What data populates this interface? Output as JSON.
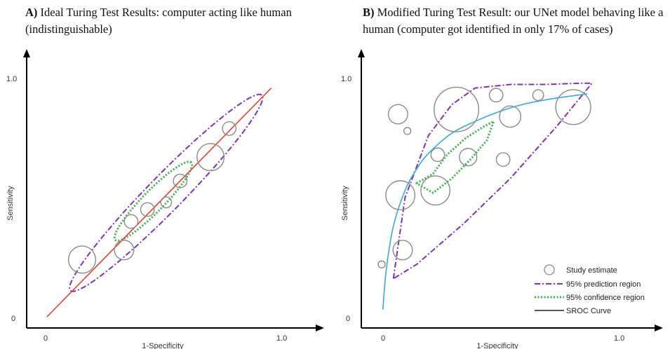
{
  "panels": [
    {
      "label": "A)",
      "title": "Ideal Turing Test Results: computer acting like human (indistinguishable)"
    },
    {
      "label": "B)",
      "title": "Modified Turing Test Result: our UNet model behaving like a human (computer got identified in only 17% of cases)"
    }
  ],
  "chart_data": [
    {
      "type": "scatter",
      "xlabel": "1-Specificity",
      "ylabel": "Sensitivity",
      "xlim": [
        0,
        1
      ],
      "ylim": [
        0,
        1
      ],
      "x_ticks": [
        "0",
        "1.0"
      ],
      "y_ticks": [
        "0",
        "1.0"
      ],
      "colors": {
        "study": "#8a8a8a",
        "prediction": "#7b33b7",
        "confidence": "#3cb44b",
        "line": "#e8412c"
      },
      "study_estimates": [
        {
          "x": 0.15,
          "y": 0.24,
          "r": 0.07
        },
        {
          "x": 0.33,
          "y": 0.28,
          "r": 0.05
        },
        {
          "x": 0.36,
          "y": 0.4,
          "r": 0.035
        },
        {
          "x": 0.43,
          "y": 0.45,
          "r": 0.035
        },
        {
          "x": 0.51,
          "y": 0.48,
          "r": 0.028
        },
        {
          "x": 0.57,
          "y": 0.57,
          "r": 0.035
        },
        {
          "x": 0.7,
          "y": 0.67,
          "r": 0.07
        },
        {
          "x": 0.78,
          "y": 0.79,
          "r": 0.035
        }
      ],
      "reference_line": [
        [
          0,
          0
        ],
        [
          0.96,
          0.96
        ]
      ],
      "prediction_region": {
        "cx": 0.51,
        "cy": 0.52,
        "a": 0.58,
        "b": 0.075,
        "angle_deg": 45
      },
      "confidence_region": {
        "cx": 0.455,
        "cy": 0.485,
        "a": 0.23,
        "b": 0.045,
        "angle_deg": 45
      }
    },
    {
      "type": "scatter",
      "xlabel": "1-Specificity",
      "ylabel": "Sensitivity",
      "xlim": [
        0,
        1
      ],
      "ylim": [
        0,
        1
      ],
      "x_ticks": [
        "0",
        "1.0"
      ],
      "y_ticks": [
        "0",
        "1.0"
      ],
      "colors": {
        "study": "#8a8a8a",
        "prediction": "#7b33b7",
        "confidence": "#3cb44b",
        "sroc": "#3aa8df"
      },
      "study_estimates": [
        {
          "x": 0.07,
          "y": 0.85,
          "r": 0.05
        },
        {
          "x": 0.11,
          "y": 0.78,
          "r": 0.018
        },
        {
          "x": 0.32,
          "y": 0.87,
          "r": 0.115
        },
        {
          "x": 0.49,
          "y": 0.93,
          "r": 0.035
        },
        {
          "x": 0.55,
          "y": 0.84,
          "r": 0.055
        },
        {
          "x": 0.67,
          "y": 0.93,
          "r": 0.028
        },
        {
          "x": 0.82,
          "y": 0.88,
          "r": 0.09
        },
        {
          "x": 0.24,
          "y": 0.68,
          "r": 0.035
        },
        {
          "x": 0.37,
          "y": 0.67,
          "r": 0.045
        },
        {
          "x": 0.52,
          "y": 0.66,
          "r": 0.035
        },
        {
          "x": 0.08,
          "y": 0.51,
          "r": 0.075
        },
        {
          "x": 0.23,
          "y": 0.53,
          "r": 0.075
        },
        {
          "x": 0.09,
          "y": 0.28,
          "r": 0.05
        },
        {
          "x": 0.0,
          "y": 0.22,
          "r": 0.018
        }
      ],
      "sroc_curve": [
        [
          0.005,
          0.03
        ],
        [
          0.02,
          0.2
        ],
        [
          0.05,
          0.38
        ],
        [
          0.1,
          0.53
        ],
        [
          0.15,
          0.62
        ],
        [
          0.2,
          0.685
        ],
        [
          0.3,
          0.77
        ],
        [
          0.4,
          0.82
        ],
        [
          0.5,
          0.86
        ],
        [
          0.6,
          0.89
        ],
        [
          0.7,
          0.91
        ],
        [
          0.8,
          0.925
        ],
        [
          0.88,
          0.935
        ]
      ],
      "prediction_region": [
        [
          0.05,
          0.16
        ],
        [
          0.1,
          0.5
        ],
        [
          0.2,
          0.76
        ],
        [
          0.3,
          0.89
        ],
        [
          0.4,
          0.96
        ],
        [
          0.55,
          0.975
        ],
        [
          0.7,
          0.975
        ],
        [
          0.85,
          0.98
        ],
        [
          0.9,
          0.98
        ],
        [
          0.75,
          0.8
        ],
        [
          0.55,
          0.58
        ],
        [
          0.35,
          0.39
        ],
        [
          0.15,
          0.22
        ],
        [
          0.05,
          0.16
        ]
      ],
      "confidence_region": [
        [
          0.15,
          0.56
        ],
        [
          0.22,
          0.6
        ],
        [
          0.28,
          0.68
        ],
        [
          0.36,
          0.75
        ],
        [
          0.44,
          0.8
        ],
        [
          0.48,
          0.82
        ],
        [
          0.45,
          0.74
        ],
        [
          0.38,
          0.66
        ],
        [
          0.3,
          0.58
        ],
        [
          0.22,
          0.52
        ],
        [
          0.15,
          0.56
        ]
      ],
      "legend": {
        "position": "bottom-right",
        "items": [
          "Study estimate",
          "95% prediction region",
          "95% confidence region",
          "SROC Curve"
        ]
      }
    }
  ]
}
